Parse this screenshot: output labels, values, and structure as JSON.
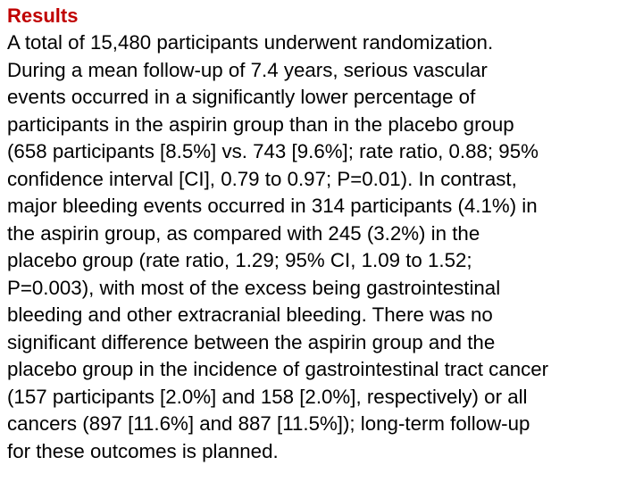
{
  "heading": "Results",
  "colors": {
    "heading": "#c00000",
    "body_text": "#000000",
    "background": "#ffffff"
  },
  "body_lines": [
    "A total of 15,480 participants underwent randomization.",
    "During a mean follow-up of 7.4 years, serious vascular",
    "events occurred in a significantly lower percentage of",
    "participants in the aspirin group than in the placebo group",
    "(658 participants [8.5%] vs. 743 [9.6%]; rate ratio, 0.88; 95%",
    "confidence interval [CI], 0.79 to 0.97; P=0.01). In contrast,",
    "major bleeding events occurred in 314 participants (4.1%) in",
    "the aspirin group, as compared with 245 (3.2%) in the",
    "placebo group (rate ratio, 1.29; 95% CI, 1.09 to 1.52;",
    "P=0.003), with most of the excess being gastrointestinal",
    "bleeding and other extracranial bleeding. There was no",
    "significant difference between the aspirin group and the",
    "placebo group in the incidence of gastrointestinal tract cancer",
    "(157 participants [2.0%] and 158 [2.0%], respectively) or all",
    "cancers (897 [11.6%] and 887 [11.5%]); long-term follow-up",
    "for these outcomes is planned."
  ]
}
